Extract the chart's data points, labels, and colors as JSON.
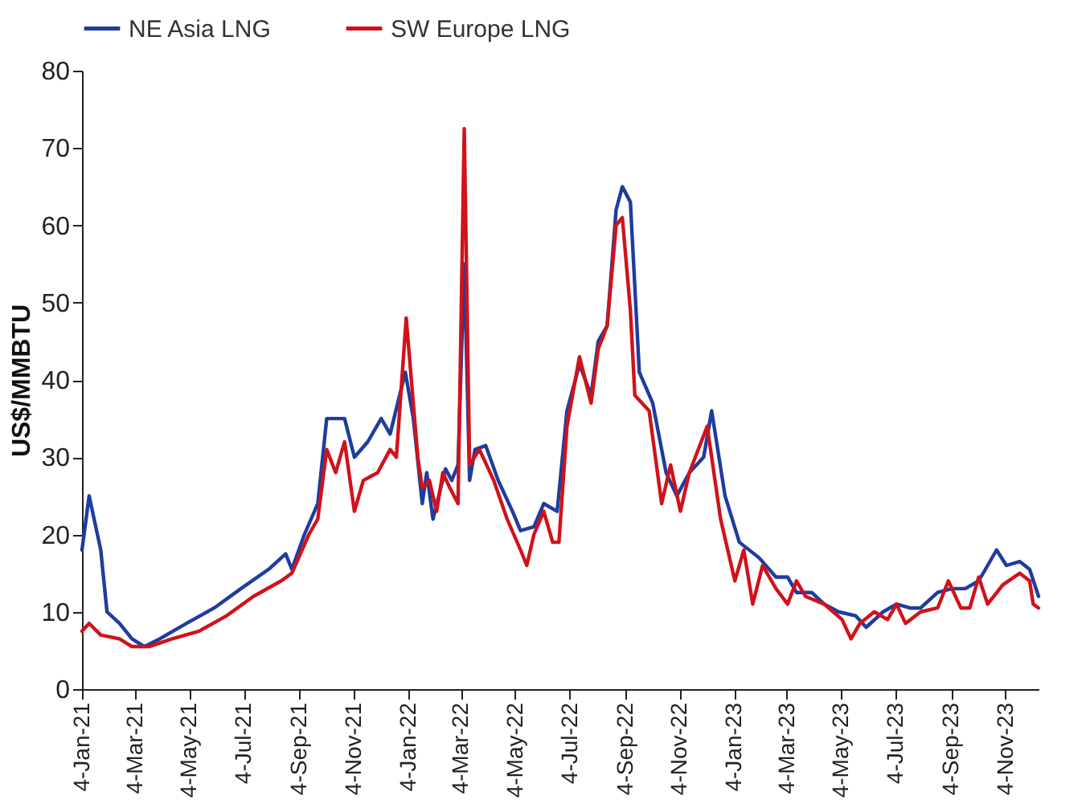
{
  "chart_data": {
    "type": "line",
    "ylabel": "US$/MMBTU",
    "xlim": [
      "2021-01-04",
      "2023-12-11"
    ],
    "ylim": [
      0,
      80
    ],
    "yticks": [
      0,
      10,
      20,
      30,
      40,
      50,
      60,
      70,
      80
    ],
    "xticks": [
      {
        "value": "2021-01-04",
        "label": "4-Jan-21"
      },
      {
        "value": "2021-03-04",
        "label": "4-Mar-21"
      },
      {
        "value": "2021-05-04",
        "label": "4-May-21"
      },
      {
        "value": "2021-07-04",
        "label": "4-Jul-21"
      },
      {
        "value": "2021-09-04",
        "label": "4-Sep-21"
      },
      {
        "value": "2021-11-04",
        "label": "4-Nov-21"
      },
      {
        "value": "2022-01-04",
        "label": "4-Jan-22"
      },
      {
        "value": "2022-03-04",
        "label": "4-Mar-22"
      },
      {
        "value": "2022-05-04",
        "label": "4-May-22"
      },
      {
        "value": "2022-07-04",
        "label": "4-Jul-22"
      },
      {
        "value": "2022-09-04",
        "label": "4-Sep-22"
      },
      {
        "value": "2022-11-04",
        "label": "4-Nov-22"
      },
      {
        "value": "2023-01-04",
        "label": "4-Jan-23"
      },
      {
        "value": "2023-03-04",
        "label": "4-Mar-23"
      },
      {
        "value": "2023-05-04",
        "label": "4-May-23"
      },
      {
        "value": "2023-07-04",
        "label": "4-Jul-23"
      },
      {
        "value": "2023-09-04",
        "label": "4-Sep-23"
      },
      {
        "value": "2023-11-04",
        "label": "4-Nov-23"
      }
    ],
    "grid": false,
    "legend": "top",
    "line_style": "solid",
    "marker": "none",
    "series": [
      {
        "name": "NE Asia LNG",
        "color": "#1f3c9e",
        "x": [
          "2021-01-04",
          "2021-01-12",
          "2021-01-25",
          "2021-02-01",
          "2021-02-15",
          "2021-03-01",
          "2021-03-15",
          "2021-04-01",
          "2021-05-01",
          "2021-06-01",
          "2021-07-01",
          "2021-08-01",
          "2021-08-20",
          "2021-08-27",
          "2021-09-10",
          "2021-09-25",
          "2021-10-05",
          "2021-10-25",
          "2021-11-05",
          "2021-11-20",
          "2021-12-05",
          "2021-12-15",
          "2022-01-01",
          "2022-01-10",
          "2022-01-20",
          "2022-01-25",
          "2022-02-01",
          "2022-02-15",
          "2022-02-22",
          "2022-03-01",
          "2022-03-08",
          "2022-03-14",
          "2022-03-20",
          "2022-04-01",
          "2022-04-15",
          "2022-05-01",
          "2022-05-10",
          "2022-05-25",
          "2022-06-05",
          "2022-06-20",
          "2022-07-01",
          "2022-07-15",
          "2022-07-28",
          "2022-08-05",
          "2022-08-15",
          "2022-08-25",
          "2022-09-01",
          "2022-09-10",
          "2022-09-20",
          "2022-10-05",
          "2022-10-20",
          "2022-11-01",
          "2022-11-15",
          "2022-12-01",
          "2022-12-10",
          "2022-12-25",
          "2023-01-10",
          "2023-02-01",
          "2023-02-20",
          "2023-03-05",
          "2023-03-15",
          "2023-04-01",
          "2023-04-15",
          "2023-05-01",
          "2023-05-20",
          "2023-06-01",
          "2023-06-20",
          "2023-07-05",
          "2023-07-20",
          "2023-08-01",
          "2023-08-20",
          "2023-09-05",
          "2023-09-20",
          "2023-10-05",
          "2023-10-25",
          "2023-11-05",
          "2023-11-20",
          "2023-12-01",
          "2023-12-11"
        ],
        "values": [
          18,
          25,
          18,
          10,
          8.5,
          6.5,
          5.5,
          6.5,
          8.5,
          10.5,
          13,
          15.5,
          17.5,
          15.5,
          20,
          24,
          35,
          35,
          30,
          32,
          35,
          33,
          41,
          35,
          24,
          28,
          22,
          28.5,
          27,
          29,
          55,
          27,
          31,
          31.5,
          27,
          23,
          20.5,
          21,
          24,
          23,
          36,
          42,
          38,
          45,
          47,
          62,
          65,
          63,
          41,
          37,
          28,
          25,
          28,
          30,
          36,
          25,
          19,
          17,
          14.5,
          14.5,
          12.5,
          12.5,
          11,
          10,
          9.5,
          8,
          10,
          11,
          10.5,
          10.5,
          12.5,
          13,
          13,
          14,
          18,
          16,
          16.5,
          15.5,
          12
        ]
      },
      {
        "name": "SW Europe LNG",
        "color": "#d0121b",
        "x": [
          "2021-01-04",
          "2021-01-12",
          "2021-01-25",
          "2021-02-15",
          "2021-03-01",
          "2021-03-20",
          "2021-04-15",
          "2021-05-15",
          "2021-06-15",
          "2021-07-15",
          "2021-08-15",
          "2021-08-27",
          "2021-09-15",
          "2021-09-25",
          "2021-10-05",
          "2021-10-15",
          "2021-10-25",
          "2021-11-05",
          "2021-11-15",
          "2021-12-01",
          "2021-12-15",
          "2021-12-22",
          "2022-01-02",
          "2022-01-15",
          "2022-01-20",
          "2022-01-28",
          "2022-02-05",
          "2022-02-12",
          "2022-02-20",
          "2022-03-01",
          "2022-03-08",
          "2022-03-14",
          "2022-03-25",
          "2022-04-10",
          "2022-04-25",
          "2022-05-10",
          "2022-05-17",
          "2022-05-25",
          "2022-06-05",
          "2022-06-15",
          "2022-06-22",
          "2022-07-01",
          "2022-07-15",
          "2022-07-28",
          "2022-08-05",
          "2022-08-15",
          "2022-08-25",
          "2022-09-01",
          "2022-09-10",
          "2022-09-15",
          "2022-10-01",
          "2022-10-15",
          "2022-10-25",
          "2022-11-05",
          "2022-11-15",
          "2022-12-05",
          "2022-12-20",
          "2023-01-05",
          "2023-01-15",
          "2023-01-25",
          "2023-02-05",
          "2023-02-20",
          "2023-03-05",
          "2023-03-15",
          "2023-03-25",
          "2023-04-15",
          "2023-05-05",
          "2023-05-15",
          "2023-05-25",
          "2023-06-10",
          "2023-06-25",
          "2023-07-05",
          "2023-07-15",
          "2023-08-01",
          "2023-08-20",
          "2023-09-01",
          "2023-09-15",
          "2023-09-25",
          "2023-10-05",
          "2023-10-15",
          "2023-11-01",
          "2023-11-20",
          "2023-12-01",
          "2023-12-05",
          "2023-12-11"
        ],
        "values": [
          7.5,
          8.5,
          7,
          6.5,
          5.5,
          5.5,
          6.5,
          7.5,
          9.5,
          12,
          14,
          15,
          20,
          22,
          31,
          28,
          32,
          23,
          27,
          28,
          31,
          30,
          48,
          30,
          26,
          27,
          23,
          28,
          26,
          24,
          72.5,
          29,
          31,
          27,
          22,
          18,
          16,
          20,
          23,
          19,
          19,
          34,
          43,
          37,
          44,
          47,
          60,
          61,
          49,
          38,
          36,
          24,
          29,
          23,
          28,
          34,
          22,
          14,
          18,
          11,
          16,
          13,
          11,
          14,
          12,
          11,
          9,
          6.5,
          8.5,
          10,
          9,
          11,
          8.5,
          10,
          10.5,
          14,
          10.5,
          10.5,
          14.5,
          11,
          13.5,
          15,
          14,
          11,
          10.5
        ]
      }
    ]
  }
}
